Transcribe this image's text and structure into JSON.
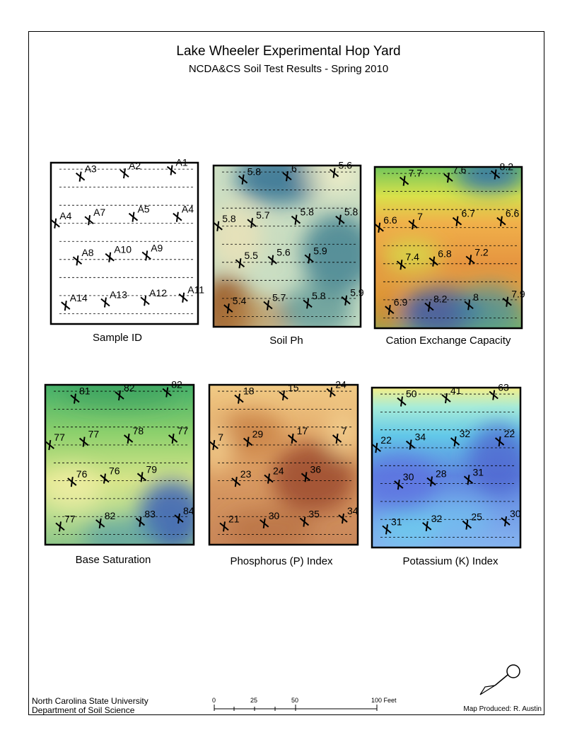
{
  "title": "Lake Wheeler Experimental Hop Yard",
  "subtitle": "NCDA&CS Soil Test Results - Spring 2010",
  "panels": [
    {
      "id": "sample-id",
      "label": "Sample ID",
      "background": "none",
      "values": [
        "A3",
        "A2",
        "A1",
        "A4",
        "A7",
        "A5",
        "A4",
        "A8",
        "A10",
        "A9",
        "A14",
        "A13",
        "A12",
        "A11"
      ]
    },
    {
      "id": "soil-ph",
      "label": "Soil Ph",
      "background": "ph",
      "values": [
        "5.8",
        "6",
        "5.6",
        "5.8",
        "5.7",
        "5.8",
        "5.8",
        "5.5",
        "5.6",
        "5.9",
        "5.4",
        "5.7",
        "5.8",
        "5.9"
      ]
    },
    {
      "id": "cec",
      "label": "Cation Exchange Capacity",
      "background": "cec",
      "values": [
        "7.7",
        "7.6",
        "8.2",
        "6.6",
        "7",
        "6.7",
        "6.6",
        "7.4",
        "6.8",
        "7.2",
        "6.9",
        "8.2",
        "8",
        "7.9"
      ]
    },
    {
      "id": "base-saturation",
      "label": "Base Saturation",
      "background": "bs",
      "values": [
        "81",
        "82",
        "82",
        "77",
        "77",
        "78",
        "77",
        "76",
        "76",
        "79",
        "77",
        "82",
        "83",
        "84"
      ]
    },
    {
      "id": "phosphorus",
      "label": "Phosphorus (P) Index",
      "background": "p",
      "values": [
        "18",
        "15",
        "24",
        "7",
        "29",
        "17",
        "7",
        "23",
        "24",
        "36",
        "21",
        "30",
        "35",
        "34"
      ]
    },
    {
      "id": "potassium",
      "label": "Potassium (K) Index",
      "background": "k",
      "values": [
        "50",
        "41",
        "63",
        "22",
        "34",
        "32",
        "22",
        "30",
        "28",
        "31",
        "31",
        "32",
        "25",
        "30"
      ]
    }
  ],
  "scale_bar": {
    "ticks": [
      "0",
      "25",
      "50",
      "100 Feet"
    ]
  },
  "footer": {
    "institution": "North Carolina State University",
    "department": "Department of Soil Science",
    "credit": "Map Produced: R. Austin"
  },
  "icons": {
    "north_arrow": "north-arrow-icon",
    "sample_point": "plus-icon"
  }
}
